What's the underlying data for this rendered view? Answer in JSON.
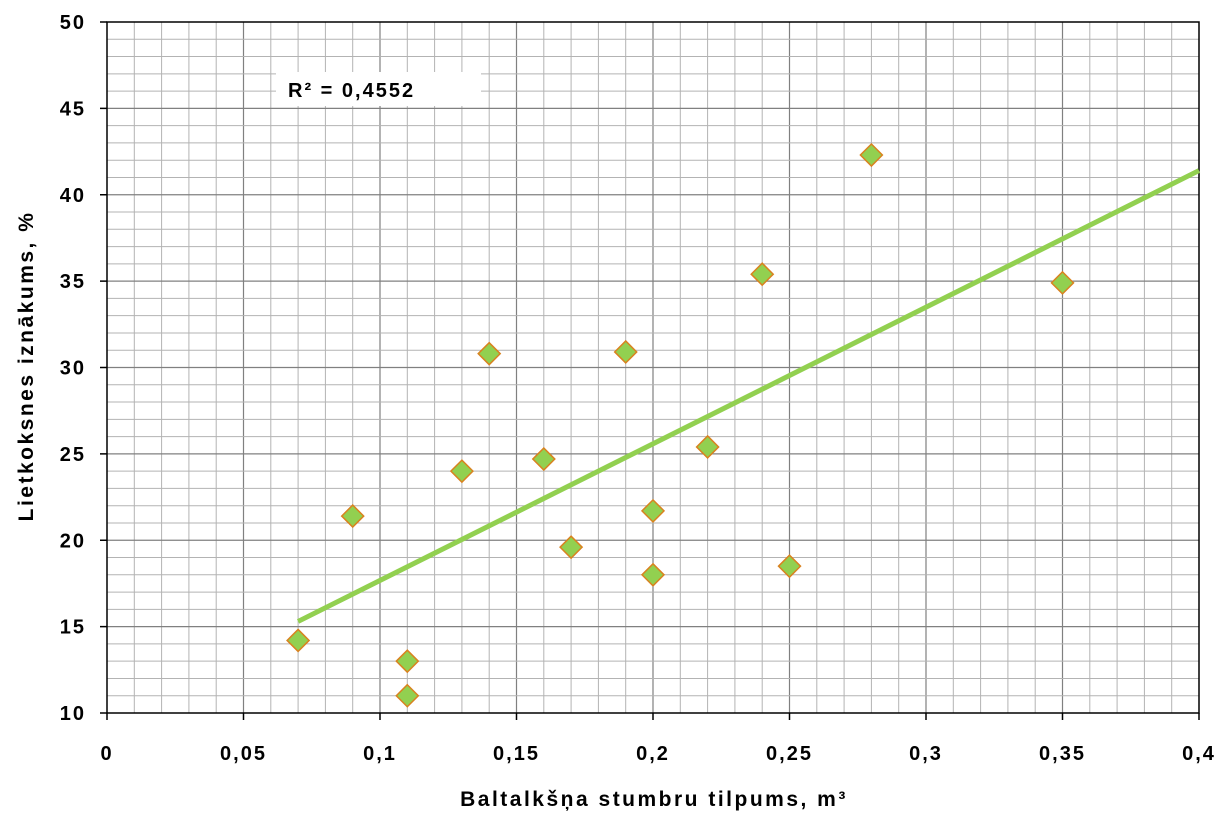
{
  "chart_data": {
    "type": "scatter",
    "xlabel": "Baltalkšņa stumbru tilpums, m³",
    "ylabel": "Lietkoksnes iznākums, %",
    "xlim": [
      0,
      0.4
    ],
    "ylim": [
      10,
      50
    ],
    "x_ticks": [
      "0",
      "0,05",
      "0,1",
      "0,15",
      "0,2",
      "0,25",
      "0,3",
      "0,35",
      "0,4"
    ],
    "y_ticks": [
      "10",
      "15",
      "20",
      "25",
      "30",
      "35",
      "40",
      "45",
      "50"
    ],
    "annotation": "R² = 0,4552",
    "grid": true,
    "points": [
      {
        "x": 0.07,
        "y": 14.2
      },
      {
        "x": 0.09,
        "y": 21.4
      },
      {
        "x": 0.11,
        "y": 13.0
      },
      {
        "x": 0.11,
        "y": 11.0
      },
      {
        "x": 0.13,
        "y": 24.0
      },
      {
        "x": 0.14,
        "y": 30.8
      },
      {
        "x": 0.16,
        "y": 24.7
      },
      {
        "x": 0.17,
        "y": 19.6
      },
      {
        "x": 0.19,
        "y": 30.9
      },
      {
        "x": 0.2,
        "y": 21.7
      },
      {
        "x": 0.2,
        "y": 18.0
      },
      {
        "x": 0.22,
        "y": 25.4
      },
      {
        "x": 0.24,
        "y": 35.4
      },
      {
        "x": 0.25,
        "y": 18.5
      },
      {
        "x": 0.28,
        "y": 42.3
      },
      {
        "x": 0.35,
        "y": 34.9
      }
    ],
    "trendline": {
      "type": "linear",
      "from": [
        0.07,
        15.3
      ],
      "to": [
        0.4,
        41.4
      ]
    },
    "colors": {
      "marker_fill": "#92d050",
      "marker_stroke": "#d9821f",
      "trendline": "#92d050",
      "grid_major": "#808080",
      "grid_minor": "#b3b3b3"
    }
  }
}
